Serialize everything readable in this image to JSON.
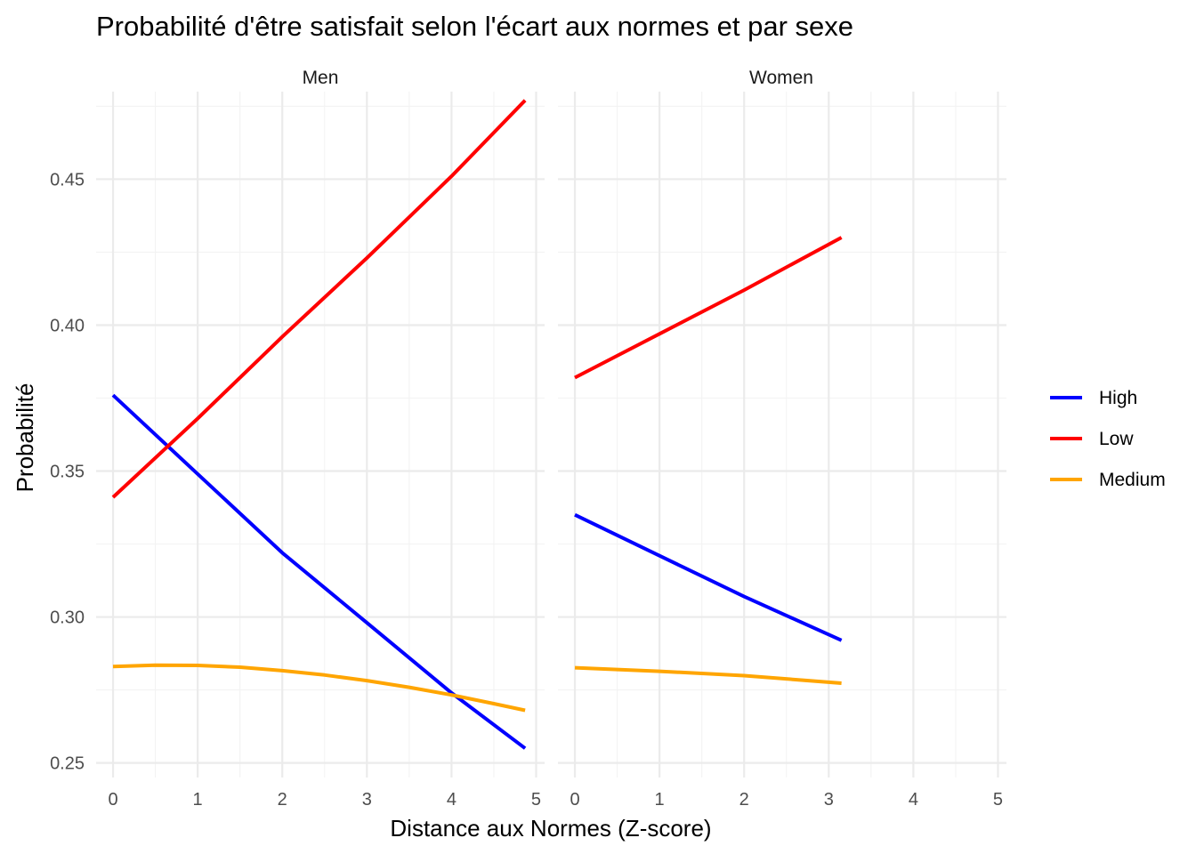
{
  "chart_data": {
    "type": "line",
    "title": "Probabilité d'être satisfait selon l'écart aux normes et par sexe",
    "xlabel": "Distance aux Normes (Z-score)",
    "ylabel": "Probabilité",
    "xlim": [
      -0.2,
      5.1
    ],
    "ylim": [
      0.245,
      0.48
    ],
    "x_ticks": [
      0,
      1,
      2,
      3,
      4,
      5
    ],
    "y_ticks": [
      0.25,
      0.3,
      0.35,
      0.4,
      0.45
    ],
    "y_tick_labels": [
      "0.25",
      "0.30",
      "0.35",
      "0.40",
      "0.45"
    ],
    "grid": true,
    "legend": {
      "position": "right",
      "entries": [
        "High",
        "Low",
        "Medium"
      ]
    },
    "colors": {
      "High": "#0000ff",
      "Low": "#ff0000",
      "Medium": "#ffa500"
    },
    "panels": [
      {
        "label": "Men",
        "series": [
          {
            "name": "High",
            "x": [
              0,
              1,
              2,
              3,
              4,
              4.87
            ],
            "y": [
              0.376,
              0.349,
              0.322,
              0.298,
              0.274,
              0.255
            ]
          },
          {
            "name": "Low",
            "x": [
              0,
              1,
              2,
              3,
              4,
              4.87
            ],
            "y": [
              0.341,
              0.368,
              0.396,
              0.423,
              0.451,
              0.477
            ]
          },
          {
            "name": "Medium",
            "x": [
              0,
              0.5,
              1,
              1.5,
              2,
              2.5,
              3,
              3.5,
              4,
              4.5,
              4.87
            ],
            "y": [
              0.283,
              0.2835,
              0.2834,
              0.2828,
              0.2816,
              0.2801,
              0.2782,
              0.2759,
              0.2733,
              0.2703,
              0.268
            ]
          }
        ]
      },
      {
        "label": "Women",
        "series": [
          {
            "name": "High",
            "x": [
              0,
              1,
              2,
              3.15
            ],
            "y": [
              0.335,
              0.321,
              0.307,
              0.292
            ]
          },
          {
            "name": "Low",
            "x": [
              0,
              1,
              2,
              3.15
            ],
            "y": [
              0.382,
              0.397,
              0.412,
              0.43
            ]
          },
          {
            "name": "Medium",
            "x": [
              0,
              1,
              2,
              3.15
            ],
            "y": [
              0.2826,
              0.2814,
              0.2799,
              0.2773
            ]
          }
        ]
      }
    ]
  }
}
